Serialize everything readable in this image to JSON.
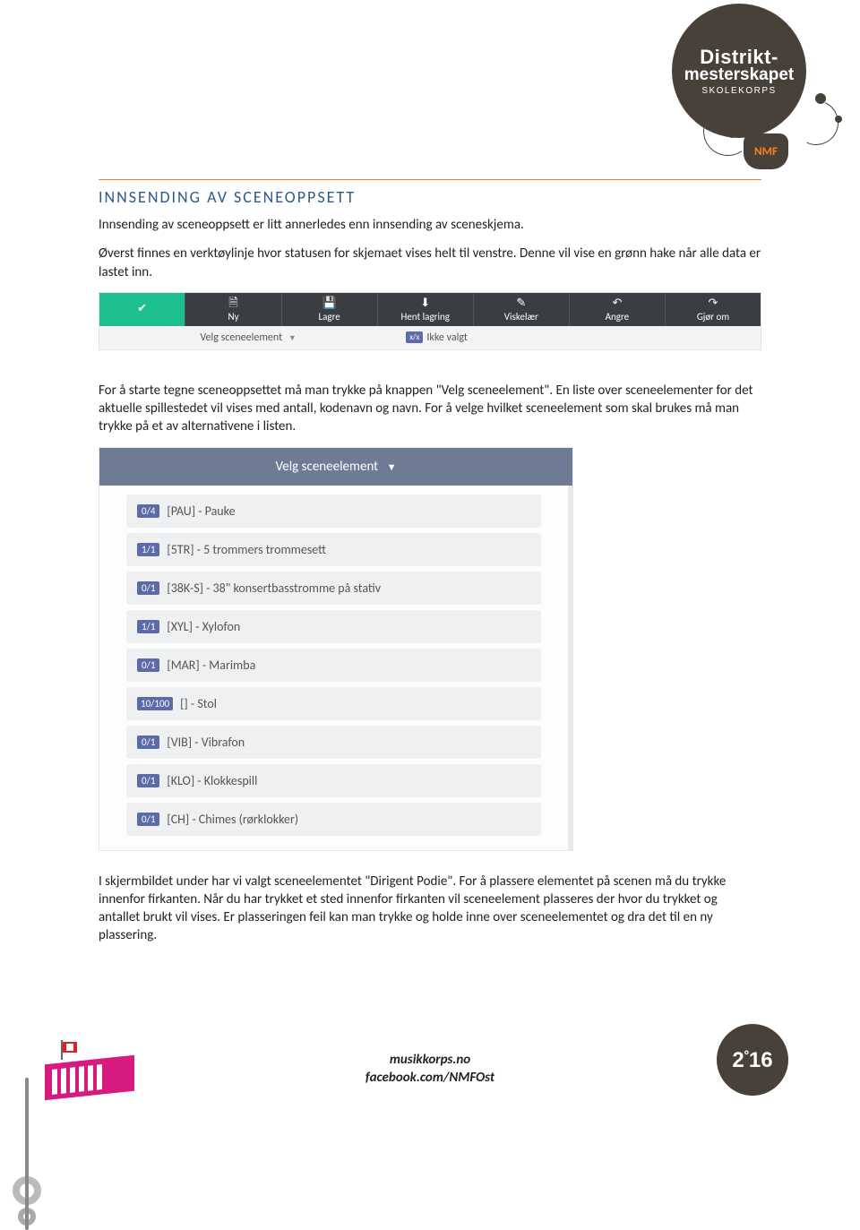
{
  "heading": "INNSENDING AV SCENEOPPSETT",
  "para1": "Innsending av sceneoppsett er litt annerledes enn innsending av sceneskjema.",
  "para2": "Øverst finnes en verktøylinje hvor statusen for skjemaet vises helt til venstre. Denne vil vise en grønn hake når alle data er lastet inn.",
  "para3": "For å starte tegne sceneoppsettet må man trykke på knappen \"Velg sceneelement\". En liste over sceneelementer for det aktuelle spillestedet vil vises med antall, kodenavn og navn. For å velge hvilket sceneelement som skal brukes må man trykke på et av alternativene i listen.",
  "para4": "I skjermbildet under har vi valgt sceneelementet \"Dirigent Podie\". For å plassere elementet på scenen må du trykke innenfor firkanten. Når du har trykket et sted innenfor firkanten vil sceneelement plasseres der hvor du trykket og antallet brukt vil vises. Er plasseringen feil kan man trykke og holde inne over sceneelementet og dra det til en ny plassering.",
  "toolbar": {
    "check": "✔",
    "ny_icon": "🗎",
    "ny": "Ny",
    "lagre_icon": "💾",
    "lagre": "Lagre",
    "hent_icon": "⬇",
    "hent": "Hent lagring",
    "visk_icon": "✎",
    "visk": "Viskelær",
    "angre_icon": "↶",
    "angre": "Angre",
    "gjor_icon": "↷",
    "gjor": "Gjør om",
    "velg": "Velg sceneelement",
    "badge_xx": "x/x",
    "ikke": "Ikke valgt"
  },
  "dropdown": {
    "header": "Velg sceneelement",
    "items": [
      {
        "badge": "0/4",
        "label": "[PAU] - Pauke"
      },
      {
        "badge": "1/1",
        "label": "[5TR] - 5 trommers trommesett"
      },
      {
        "badge": "0/1",
        "label": "[38K-S] - 38\" konsertbasstromme på stativ"
      },
      {
        "badge": "1/1",
        "label": "[XYL] - Xylofon"
      },
      {
        "badge": "0/1",
        "label": "[MAR] - Marimba"
      },
      {
        "badge": "10/100",
        "label": "[] - Stol"
      },
      {
        "badge": "0/1",
        "label": "[VIB] - Vibrafon"
      },
      {
        "badge": "0/1",
        "label": "[KLO] - Klokkespill"
      },
      {
        "badge": "0/1",
        "label": "[CH] - Chimes (rørklokker)"
      }
    ]
  },
  "logo": {
    "line1": "Distrikt-",
    "line2": "mesterskapet",
    "line3": "SKOLEKORPS",
    "nmf": "NMF"
  },
  "year_badge": "2º16",
  "footer": {
    "line1": "musikkorps.no",
    "line2": "facebook.com/NMFOst"
  },
  "colors": {
    "orange": "#f58220",
    "heading_blue": "#2e5a8a",
    "toolbar_bg": "#3a3e43",
    "toolbar_green": "#1dbf8e",
    "badge_blue": "#5c6aa8",
    "dd_header": "#6e7b94",
    "dd_item_bg": "#eef0f2",
    "logo_dark": "#47413a",
    "pink": "#d61a7f"
  }
}
